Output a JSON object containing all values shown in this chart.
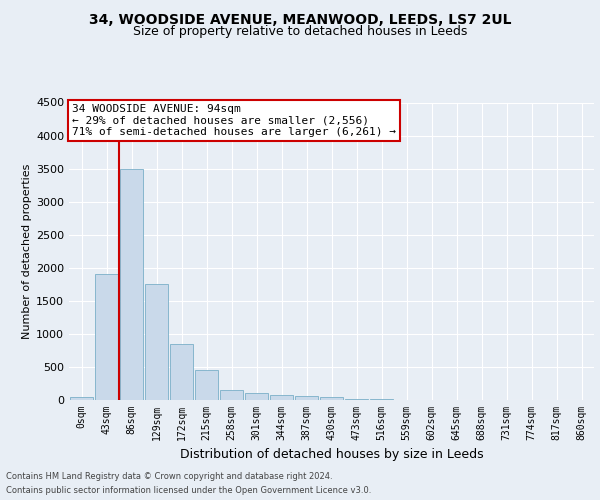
{
  "title1": "34, WOODSIDE AVENUE, MEANWOOD, LEEDS, LS7 2UL",
  "title2": "Size of property relative to detached houses in Leeds",
  "xlabel": "Distribution of detached houses by size in Leeds",
  "ylabel": "Number of detached properties",
  "bar_labels": [
    "0sqm",
    "43sqm",
    "86sqm",
    "129sqm",
    "172sqm",
    "215sqm",
    "258sqm",
    "301sqm",
    "344sqm",
    "387sqm",
    "430sqm",
    "473sqm",
    "516sqm",
    "559sqm",
    "602sqm",
    "645sqm",
    "688sqm",
    "731sqm",
    "774sqm",
    "817sqm",
    "860sqm"
  ],
  "bar_values": [
    50,
    1900,
    3500,
    1750,
    850,
    450,
    150,
    100,
    75,
    60,
    40,
    20,
    10,
    6,
    4,
    3,
    2,
    1,
    1,
    0,
    0
  ],
  "bar_color": "#c9d9ea",
  "bar_edge_color": "#7aafc8",
  "vline_color": "#cc0000",
  "vline_x": 1.5,
  "annotation_text": "34 WOODSIDE AVENUE: 94sqm\n← 29% of detached houses are smaller (2,556)\n71% of semi-detached houses are larger (6,261) →",
  "annotation_box_facecolor": "#ffffff",
  "annotation_box_edgecolor": "#cc0000",
  "ylim": [
    0,
    4500
  ],
  "yticks": [
    0,
    500,
    1000,
    1500,
    2000,
    2500,
    3000,
    3500,
    4000,
    4500
  ],
  "bg_color": "#e8eef5",
  "plot_bg_color": "#e8eef5",
  "grid_color": "#ffffff",
  "footer_line1": "Contains HM Land Registry data © Crown copyright and database right 2024.",
  "footer_line2": "Contains public sector information licensed under the Open Government Licence v3.0.",
  "title1_fontsize": 10,
  "title2_fontsize": 9,
  "tick_fontsize": 7,
  "ylabel_fontsize": 8,
  "xlabel_fontsize": 9,
  "footer_fontsize": 6,
  "annotation_fontsize": 8
}
